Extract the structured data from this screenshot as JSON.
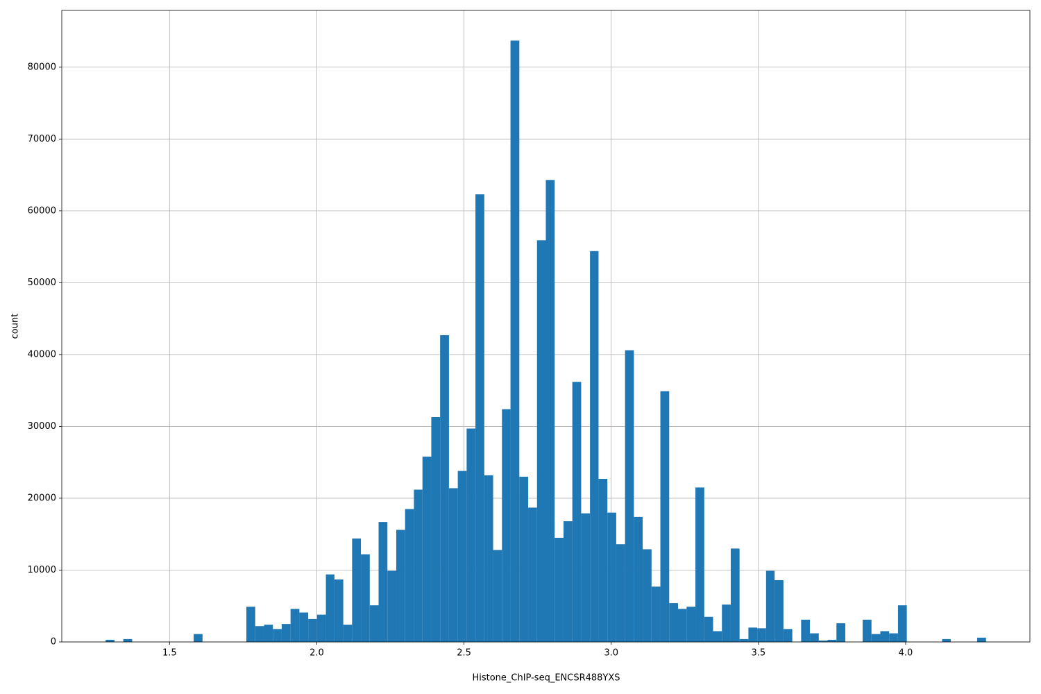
{
  "chart_data": {
    "type": "histogram",
    "xlabel": "Histone_ChIP-seq_ENCSR488YXS",
    "ylabel": "count",
    "color": "#1f77b4",
    "grid": true,
    "bins": [
      1.283,
      1.313,
      1.343,
      1.373,
      1.403,
      1.433,
      1.462,
      1.492,
      1.522,
      1.552,
      1.582,
      1.612,
      1.642,
      1.672,
      1.702,
      1.732,
      1.761,
      1.791,
      1.821,
      1.851,
      1.881,
      1.911,
      1.941,
      1.971,
      2.001,
      2.031,
      2.06,
      2.09,
      2.12,
      2.15,
      2.18,
      2.21,
      2.24,
      2.27,
      2.3,
      2.33,
      2.359,
      2.389,
      2.419,
      2.449,
      2.479,
      2.509,
      2.539,
      2.569,
      2.599,
      2.629,
      2.658,
      2.688,
      2.718,
      2.748,
      2.778,
      2.808,
      2.838,
      2.868,
      2.898,
      2.928,
      2.957,
      2.987,
      3.017,
      3.047,
      3.077,
      3.107,
      3.137,
      3.167,
      3.197,
      3.227,
      3.256,
      3.286,
      3.316,
      3.346,
      3.376,
      3.406,
      3.436,
      3.466,
      3.496,
      3.526,
      3.555,
      3.585,
      3.615,
      3.645,
      3.675,
      3.705,
      3.735,
      3.765,
      3.795,
      3.825,
      3.854,
      3.884,
      3.914,
      3.944,
      3.974,
      4.004,
      4.034,
      4.064,
      4.094,
      4.124,
      4.153,
      4.183,
      4.213,
      4.243,
      4.273
    ],
    "values": [
      300,
      0,
      400,
      0,
      0,
      0,
      0,
      0,
      0,
      0,
      1100,
      0,
      0,
      0,
      0,
      0,
      4900,
      2200,
      2400,
      1800,
      2500,
      4600,
      4100,
      3200,
      3800,
      9400,
      8700,
      2400,
      14400,
      12200,
      5100,
      16700,
      9900,
      15600,
      18500,
      21200,
      25800,
      31300,
      42700,
      21400,
      23800,
      29700,
      62300,
      23200,
      12800,
      32400,
      83700,
      23000,
      18700,
      55900,
      64300,
      14500,
      16800,
      36200,
      17900,
      54400,
      22700,
      18000,
      13600,
      40600,
      17400,
      12900,
      7700,
      34900,
      5400,
      4600,
      4900,
      21500,
      3500,
      1500,
      5200,
      13000,
      400,
      2000,
      1900,
      9900,
      8600,
      1800,
      0,
      3100,
      1200,
      200,
      300,
      2600,
      0,
      0,
      3100,
      1100,
      1500,
      1200,
      5100,
      0,
      0,
      0,
      0,
      400,
      0,
      0,
      0,
      600
    ],
    "xlim": [
      1.134,
      4.422
    ],
    "xticks": [
      1.5,
      {
        "value": 2,
        "label": "2.0"
      },
      2.5,
      {
        "value": 3,
        "label": "3.0"
      },
      3.5,
      {
        "value": 4,
        "label": "4.0"
      }
    ],
    "ylim": [
      0,
      87900
    ],
    "yticks": [
      0,
      10000,
      20000,
      30000,
      40000,
      50000,
      60000,
      70000,
      80000
    ]
  }
}
